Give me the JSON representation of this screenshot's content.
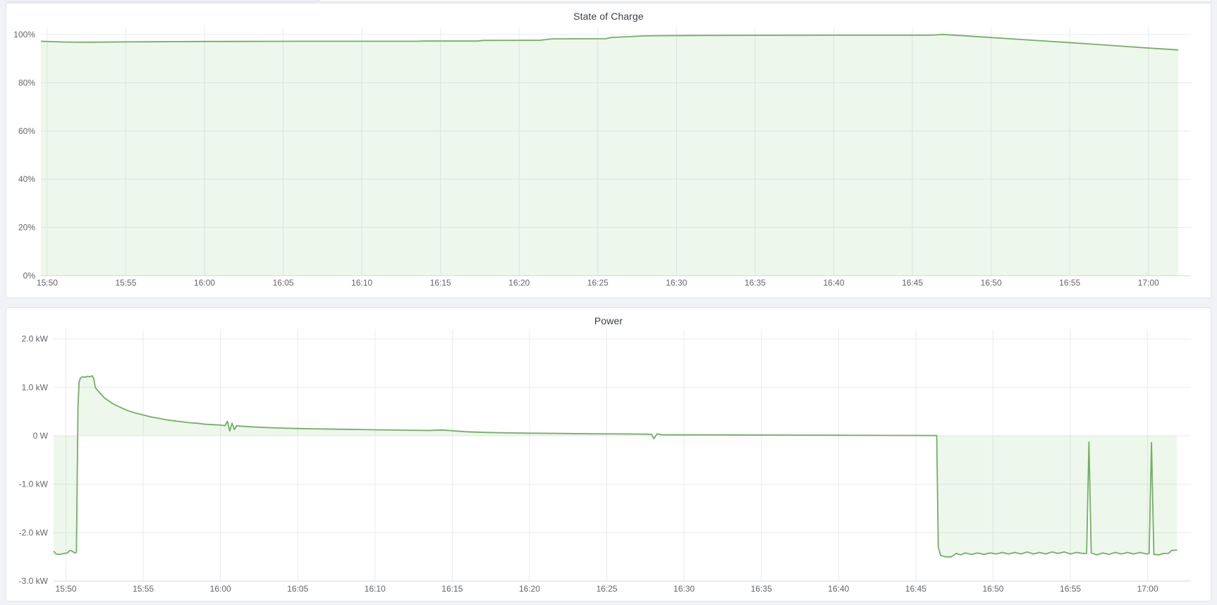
{
  "colors": {
    "page_bg": "#f0f2f6",
    "panel_border": "#dfe3ea",
    "line_green": "#74ae66",
    "fill_green": "#73bf69",
    "axis_text": "#61656c",
    "title_text": "#3a4148"
  },
  "panels": [
    {
      "title": "State of Charge"
    },
    {
      "title": "Power"
    }
  ],
  "chart_data": [
    {
      "type": "area",
      "title": "State of Charge",
      "legend": "none",
      "grid": true,
      "xlabel": "",
      "ylabel": "",
      "x_axis": {
        "unit": "time of day (HH:MM)",
        "domain_minutes_after_15h": [
          49.6,
          122.7
        ],
        "tick_minutes": [
          50,
          55,
          60,
          65,
          70,
          75,
          80,
          85,
          90,
          95,
          100,
          105,
          110,
          115,
          120
        ],
        "tick_labels": [
          "15:50",
          "15:55",
          "16:00",
          "16:05",
          "16:10",
          "16:15",
          "16:20",
          "16:25",
          "16:30",
          "16:35",
          "16:40",
          "16:45",
          "16:50",
          "16:55",
          "17:00"
        ]
      },
      "y_axis": {
        "unit": "percent",
        "ylim": [
          0,
          102.9
        ],
        "ticks": [
          0,
          20,
          40,
          60,
          80,
          100
        ],
        "tick_labels": [
          "0%",
          "20%",
          "40%",
          "60%",
          "80%",
          "100%"
        ]
      },
      "baseline": 0,
      "series": [
        {
          "name": "State of Charge",
          "color": "#74ae66",
          "fill_color": "#73bf69",
          "fill_opacity": 0.13,
          "points": [
            [
              49.6,
              97.2
            ],
            [
              50.2,
              97.05
            ],
            [
              51.0,
              96.9
            ],
            [
              52.0,
              96.8
            ],
            [
              53.5,
              96.85
            ],
            [
              55.0,
              96.95
            ],
            [
              57.0,
              97.0
            ],
            [
              60.0,
              97.1
            ],
            [
              63.0,
              97.15
            ],
            [
              66.0,
              97.2
            ],
            [
              70.0,
              97.2
            ],
            [
              73.5,
              97.2
            ],
            [
              74.0,
              97.3
            ],
            [
              77.4,
              97.3
            ],
            [
              77.7,
              97.55
            ],
            [
              81.3,
              97.6
            ],
            [
              82.1,
              98.2
            ],
            [
              85.5,
              98.25
            ],
            [
              85.9,
              98.8
            ],
            [
              87.0,
              99.1
            ],
            [
              87.8,
              99.4
            ],
            [
              89.0,
              99.5
            ],
            [
              91.0,
              99.6
            ],
            [
              95.0,
              99.65
            ],
            [
              100.0,
              99.7
            ],
            [
              103.0,
              99.7
            ],
            [
              106.2,
              99.7
            ],
            [
              106.9,
              100.0
            ],
            [
              108.0,
              99.6
            ],
            [
              110.0,
              98.75
            ],
            [
              112.0,
              97.9
            ],
            [
              114.0,
              97.05
            ],
            [
              116.0,
              96.2
            ],
            [
              118.0,
              95.3
            ],
            [
              120.0,
              94.4
            ],
            [
              121.9,
              93.6
            ]
          ]
        }
      ]
    },
    {
      "type": "area",
      "title": "Power",
      "legend": "none",
      "grid": true,
      "xlabel": "",
      "ylabel": "",
      "x_axis": {
        "unit": "time of day (HH:MM)",
        "domain_minutes_after_15h": [
          49.2,
          122.8
        ],
        "tick_minutes": [
          50,
          55,
          60,
          65,
          70,
          75,
          80,
          85,
          90,
          95,
          100,
          105,
          110,
          115,
          120
        ],
        "tick_labels": [
          "15:50",
          "15:55",
          "16:00",
          "16:05",
          "16:10",
          "16:15",
          "16:20",
          "16:25",
          "16:30",
          "16:35",
          "16:40",
          "16:45",
          "16:50",
          "16:55",
          "17:00"
        ]
      },
      "y_axis": {
        "unit": "kW",
        "ylim": [
          -3.0,
          2.2
        ],
        "ticks": [
          -3,
          -2,
          -1,
          0,
          1,
          2
        ],
        "tick_labels": [
          "-3.0 kW",
          "-2.0 kW",
          "-1.0 kW",
          "0 W",
          "1.0 kW",
          "2.0 kW"
        ]
      },
      "baseline": 0,
      "series": [
        {
          "name": "Power",
          "color": "#74ae66",
          "fill_color": "#73bf69",
          "fill_opacity": 0.13,
          "points": [
            [
              49.2,
              -2.38
            ],
            [
              49.35,
              -2.44
            ],
            [
              49.6,
              -2.45
            ],
            [
              49.9,
              -2.43
            ],
            [
              50.1,
              -2.42
            ],
            [
              50.25,
              -2.37
            ],
            [
              50.4,
              -2.38
            ],
            [
              50.55,
              -2.42
            ],
            [
              50.68,
              -2.41
            ],
            [
              50.78,
              0.6
            ],
            [
              50.85,
              1.12
            ],
            [
              50.95,
              1.2
            ],
            [
              51.1,
              1.22
            ],
            [
              51.25,
              1.21
            ],
            [
              51.4,
              1.23
            ],
            [
              51.55,
              1.22
            ],
            [
              51.7,
              1.24
            ],
            [
              51.8,
              1.18
            ],
            [
              51.9,
              1.0
            ],
            [
              52.1,
              0.92
            ],
            [
              52.5,
              0.78
            ],
            [
              53.0,
              0.67
            ],
            [
              53.5,
              0.59
            ],
            [
              54.0,
              0.52
            ],
            [
              54.5,
              0.47
            ],
            [
              55.0,
              0.43
            ],
            [
              55.5,
              0.39
            ],
            [
              56.0,
              0.36
            ],
            [
              56.5,
              0.33
            ],
            [
              57.0,
              0.31
            ],
            [
              57.5,
              0.29
            ],
            [
              58.0,
              0.27
            ],
            [
              58.5,
              0.26
            ],
            [
              59.0,
              0.24
            ],
            [
              59.5,
              0.23
            ],
            [
              60.0,
              0.22
            ],
            [
              60.3,
              0.21
            ],
            [
              60.45,
              0.3
            ],
            [
              60.6,
              0.1
            ],
            [
              60.75,
              0.26
            ],
            [
              60.9,
              0.13
            ],
            [
              61.05,
              0.21
            ],
            [
              61.3,
              0.2
            ],
            [
              62.0,
              0.185
            ],
            [
              63.0,
              0.17
            ],
            [
              64.0,
              0.16
            ],
            [
              65.0,
              0.15
            ],
            [
              66.0,
              0.145
            ],
            [
              68.0,
              0.135
            ],
            [
              70.0,
              0.125
            ],
            [
              72.0,
              0.115
            ],
            [
              73.5,
              0.11
            ],
            [
              74.3,
              0.12
            ],
            [
              75.0,
              0.105
            ],
            [
              75.8,
              0.085
            ],
            [
              77.0,
              0.07
            ],
            [
              78.5,
              0.06
            ],
            [
              80.0,
              0.055
            ],
            [
              82.0,
              0.048
            ],
            [
              84.0,
              0.042
            ],
            [
              86.0,
              0.038
            ],
            [
              87.5,
              0.035
            ],
            [
              87.9,
              0.03
            ],
            [
              88.05,
              -0.06
            ],
            [
              88.25,
              0.04
            ],
            [
              88.6,
              0.02
            ],
            [
              90.0,
              0.02
            ],
            [
              93.0,
              0.018
            ],
            [
              96.0,
              0.015
            ],
            [
              99.0,
              0.012
            ],
            [
              102.0,
              0.01
            ],
            [
              104.0,
              0.008
            ],
            [
              106.35,
              0.005
            ],
            [
              106.45,
              -2.3
            ],
            [
              106.6,
              -2.47
            ],
            [
              106.9,
              -2.5
            ],
            [
              107.3,
              -2.5
            ],
            [
              107.6,
              -2.43
            ],
            [
              107.9,
              -2.46
            ],
            [
              108.2,
              -2.42
            ],
            [
              108.6,
              -2.45
            ],
            [
              109.0,
              -2.42
            ],
            [
              109.4,
              -2.45
            ],
            [
              109.8,
              -2.42
            ],
            [
              110.2,
              -2.44
            ],
            [
              110.6,
              -2.41
            ],
            [
              111.0,
              -2.44
            ],
            [
              111.4,
              -2.41
            ],
            [
              111.8,
              -2.44
            ],
            [
              112.2,
              -2.4
            ],
            [
              112.6,
              -2.44
            ],
            [
              113.0,
              -2.41
            ],
            [
              113.4,
              -2.44
            ],
            [
              113.8,
              -2.4
            ],
            [
              114.2,
              -2.43
            ],
            [
              114.6,
              -2.4
            ],
            [
              115.0,
              -2.44
            ],
            [
              115.4,
              -2.41
            ],
            [
              115.8,
              -2.43
            ],
            [
              116.05,
              -2.43
            ],
            [
              116.2,
              -0.13
            ],
            [
              116.35,
              -2.42
            ],
            [
              116.7,
              -2.46
            ],
            [
              117.1,
              -2.42
            ],
            [
              117.5,
              -2.45
            ],
            [
              117.9,
              -2.41
            ],
            [
              118.3,
              -2.44
            ],
            [
              118.7,
              -2.41
            ],
            [
              119.1,
              -2.44
            ],
            [
              119.5,
              -2.41
            ],
            [
              119.9,
              -2.44
            ],
            [
              120.1,
              -2.43
            ],
            [
              120.25,
              -0.14
            ],
            [
              120.4,
              -2.45
            ],
            [
              120.75,
              -2.46
            ],
            [
              121.05,
              -2.43
            ],
            [
              121.35,
              -2.43
            ],
            [
              121.55,
              -2.37
            ],
            [
              121.9,
              -2.36
            ]
          ]
        }
      ]
    }
  ]
}
